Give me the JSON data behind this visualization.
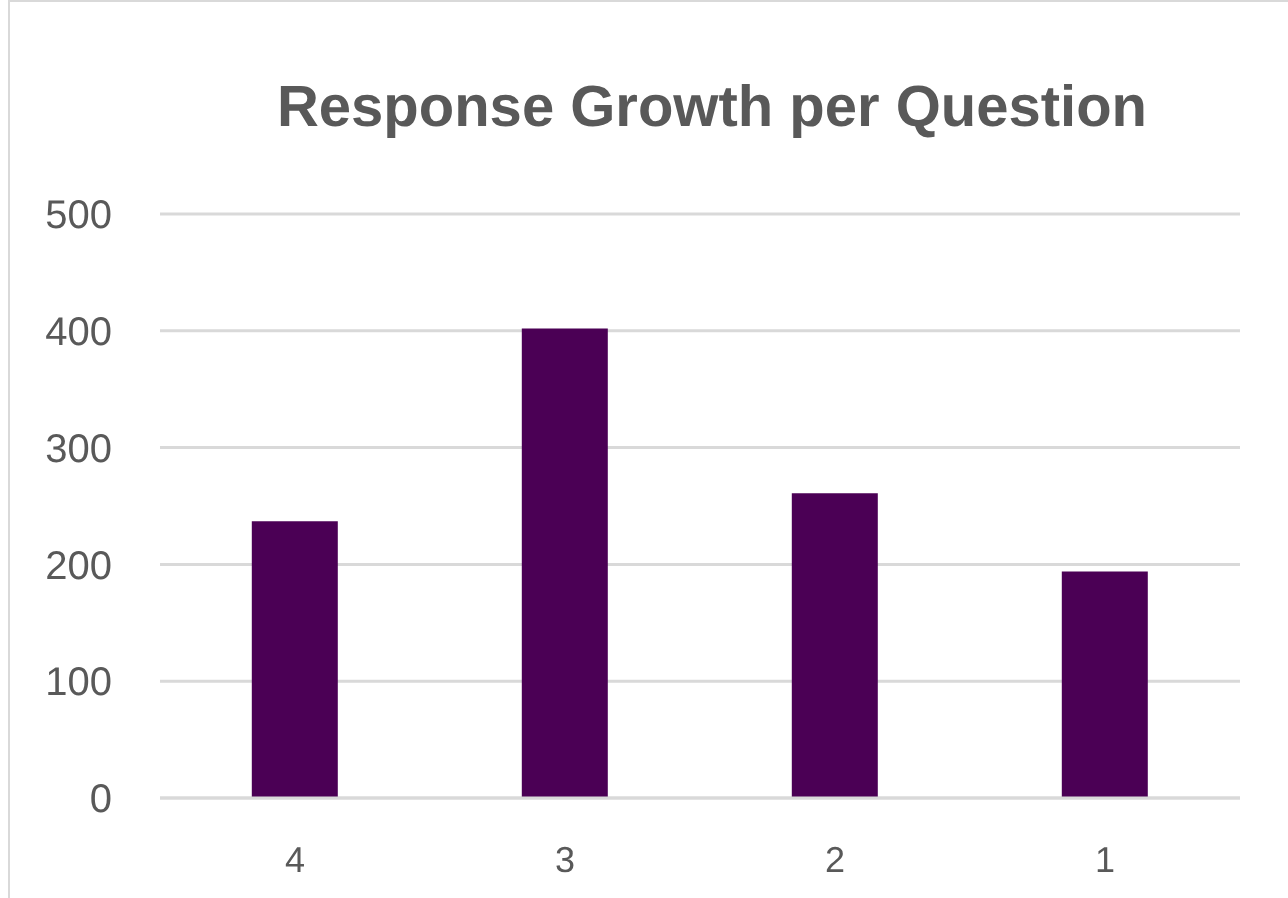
{
  "chart_data": {
    "type": "bar",
    "title": "Response Growth per Question",
    "categories": [
      "4",
      "3",
      "2",
      "1"
    ],
    "values": [
      237,
      402,
      261,
      194
    ],
    "color": "#4b0055",
    "ylim": [
      0,
      500
    ],
    "yticks": [
      0,
      100,
      200,
      300,
      400,
      500
    ],
    "grid": "y"
  }
}
